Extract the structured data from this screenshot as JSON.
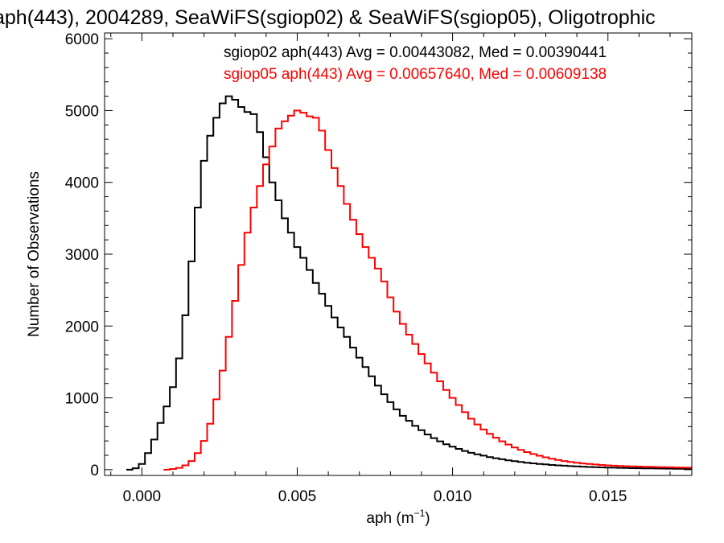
{
  "chart_data": {
    "type": "line",
    "title": "aph(443), 2004289, SeaWiFS(sgiop02) & SeaWiFS(sgiop05), Oligotrophic",
    "xlabel": "aph (m",
    "xlabel_sup": "−1",
    "xlabel_close": ")",
    "ylabel": "Number of Observations",
    "xlim": [
      -0.0012,
      0.0177
    ],
    "ylim": [
      -80,
      6080
    ],
    "xticks": [
      0.0,
      0.005,
      0.01,
      0.015
    ],
    "xtick_labels": [
      "0.000",
      "0.005",
      "0.010",
      "0.015"
    ],
    "yticks": [
      0,
      1000,
      2000,
      3000,
      4000,
      5000,
      6000
    ],
    "ytick_labels": [
      "0",
      "1000",
      "2000",
      "3000",
      "4000",
      "5000",
      "6000"
    ],
    "annotations": [
      "sgiop02 aph(443) Avg = 0.00443082, Med = 0.00390441",
      "sgiop05 aph(443) Avg = 0.00657640, Med = 0.00609138"
    ],
    "series": [
      {
        "color": "#000000",
        "x": [
          -0.0004,
          -0.0002,
          0.0,
          0.0002,
          0.0004,
          0.0006,
          0.0008,
          0.001,
          0.0012,
          0.0014,
          0.0016,
          0.0018,
          0.002,
          0.0022,
          0.0024,
          0.0026,
          0.0028,
          0.003,
          0.0032,
          0.0034,
          0.0036,
          0.0038,
          0.004,
          0.0042,
          0.0044,
          0.0046,
          0.0048,
          0.005,
          0.0052,
          0.0054,
          0.0056,
          0.0058,
          0.006,
          0.0062,
          0.0064,
          0.0066,
          0.0068,
          0.007,
          0.0072,
          0.0074,
          0.0076,
          0.0078,
          0.008,
          0.0082,
          0.0084,
          0.0086,
          0.0088,
          0.009,
          0.0092,
          0.0094,
          0.0096,
          0.0098,
          0.01,
          0.0102,
          0.0104,
          0.0106,
          0.0108,
          0.011,
          0.0112,
          0.0114,
          0.0116,
          0.0118,
          0.012,
          0.0122,
          0.0124,
          0.0126,
          0.0128,
          0.013,
          0.0132,
          0.0134,
          0.0136,
          0.0138,
          0.014,
          0.0142,
          0.0144,
          0.0146,
          0.0148,
          0.015,
          0.0152,
          0.0154,
          0.0156,
          0.0158,
          0.016,
          0.0162,
          0.0164,
          0.0166,
          0.0168,
          0.017,
          0.0172,
          0.0174,
          0.0176
        ],
        "values": [
          0,
          20,
          80,
          230,
          420,
          650,
          880,
          1150,
          1550,
          2150,
          2900,
          3650,
          4300,
          4650,
          4900,
          5100,
          5200,
          5150,
          5050,
          4980,
          4950,
          4700,
          4350,
          4000,
          3750,
          3500,
          3300,
          3100,
          2950,
          2780,
          2600,
          2450,
          2280,
          2120,
          1980,
          1850,
          1700,
          1560,
          1430,
          1300,
          1170,
          1050,
          940,
          840,
          750,
          680,
          610,
          550,
          490,
          440,
          395,
          355,
          320,
          290,
          260,
          235,
          215,
          195,
          175,
          160,
          145,
          130,
          118,
          107,
          97,
          88,
          80,
          73,
          66,
          60,
          55,
          50,
          46,
          42,
          38,
          35,
          32,
          30,
          27,
          25,
          23,
          21,
          20,
          18,
          17,
          16,
          15,
          14,
          13,
          12,
          11
        ]
      },
      {
        "color": "#ff0000",
        "x": [
          0.0008,
          0.001,
          0.0012,
          0.0014,
          0.0016,
          0.0018,
          0.002,
          0.0022,
          0.0024,
          0.0026,
          0.0028,
          0.003,
          0.0032,
          0.0034,
          0.0036,
          0.0038,
          0.004,
          0.0042,
          0.0044,
          0.0046,
          0.0048,
          0.005,
          0.0052,
          0.0054,
          0.0056,
          0.0058,
          0.006,
          0.0062,
          0.0064,
          0.0066,
          0.0068,
          0.007,
          0.0072,
          0.0074,
          0.0076,
          0.0078,
          0.008,
          0.0082,
          0.0084,
          0.0086,
          0.0088,
          0.009,
          0.0092,
          0.0094,
          0.0096,
          0.0098,
          0.01,
          0.0102,
          0.0104,
          0.0106,
          0.0108,
          0.011,
          0.0112,
          0.0114,
          0.0116,
          0.0118,
          0.012,
          0.0122,
          0.0124,
          0.0126,
          0.0128,
          0.013,
          0.0132,
          0.0134,
          0.0136,
          0.0138,
          0.014,
          0.0142,
          0.0144,
          0.0146,
          0.0148,
          0.015,
          0.0152,
          0.0154,
          0.0156,
          0.0158,
          0.016,
          0.0162,
          0.0164,
          0.0166,
          0.0168,
          0.017,
          0.0172,
          0.0174,
          0.0176
        ],
        "values": [
          0,
          10,
          25,
          60,
          120,
          230,
          400,
          640,
          980,
          1380,
          1850,
          2350,
          2850,
          3300,
          3650,
          3950,
          4250,
          4500,
          4750,
          4850,
          4930,
          5000,
          4970,
          4920,
          4900,
          4720,
          4450,
          4200,
          3950,
          3700,
          3480,
          3280,
          3100,
          2950,
          2800,
          2620,
          2400,
          2200,
          2030,
          1880,
          1750,
          1610,
          1480,
          1350,
          1230,
          1110,
          1000,
          900,
          800,
          710,
          630,
          560,
          500,
          445,
          395,
          350,
          310,
          275,
          245,
          218,
          194,
          172,
          153,
          136,
          121,
          108,
          97,
          87,
          79,
          72,
          66,
          60,
          56,
          52,
          49,
          46,
          43,
          41,
          39,
          37,
          35,
          33,
          31,
          29,
          27
        ]
      }
    ],
    "grid": false
  }
}
